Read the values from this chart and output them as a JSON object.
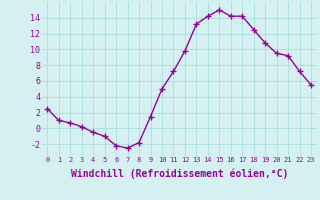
{
  "x": [
    0,
    1,
    2,
    3,
    4,
    5,
    6,
    7,
    8,
    9,
    10,
    11,
    12,
    13,
    14,
    15,
    16,
    17,
    18,
    19,
    20,
    21,
    22,
    23
  ],
  "y": [
    2.5,
    1.0,
    0.7,
    0.2,
    -0.5,
    -1.0,
    -2.2,
    -2.5,
    -1.8,
    1.5,
    5.0,
    7.2,
    9.8,
    13.2,
    14.2,
    15.0,
    14.2,
    14.2,
    12.5,
    10.8,
    9.5,
    9.2,
    7.2,
    5.5
  ],
  "line_color": "#990099",
  "marker": "+",
  "marker_size": 4,
  "bg_color": "#d4f0f0",
  "grid_color": "#aadddd",
  "axis_color": "#990099",
  "tick_color": "#990099",
  "xlabel": "Windchill (Refroidissement éolien,°C)",
  "xlabel_fontsize": 7,
  "ylabel_ticks": [
    -2,
    0,
    2,
    4,
    6,
    8,
    10,
    12,
    14
  ],
  "xlim": [
    -0.5,
    23.5
  ],
  "ylim": [
    -3.5,
    16.0
  ],
  "xtick_labels": [
    "0",
    "1",
    "2",
    "3",
    "4",
    "5",
    "6",
    "7",
    "8",
    "9",
    "10",
    "11",
    "12",
    "13",
    "14",
    "15",
    "16",
    "17",
    "18",
    "19",
    "20",
    "21",
    "22",
    "23"
  ],
  "line_width": 1.0,
  "marker_edge_width": 1.0
}
